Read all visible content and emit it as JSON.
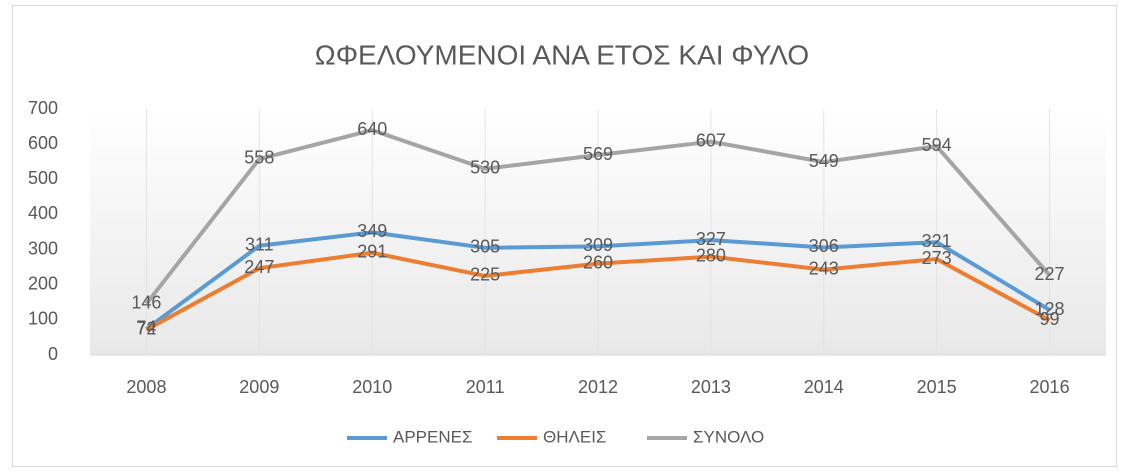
{
  "chart_data": {
    "type": "line",
    "title": "ΩΦΕΛΟΥΜΕΝΟΙ ΑΝΑ ΕΤΟΣ ΚΑΙ ΦΥΛΟ",
    "categories": [
      "2008",
      "2009",
      "2010",
      "2011",
      "2012",
      "2013",
      "2014",
      "2015",
      "2016"
    ],
    "series": [
      {
        "name": "ΑΡΡΕΝΕΣ",
        "color": "#5b9bd5",
        "values": [
          74,
          311,
          349,
          305,
          309,
          327,
          306,
          321,
          128
        ]
      },
      {
        "name": "ΘΗΛΕΙΣ",
        "color": "#ed7d31",
        "values": [
          72,
          247,
          291,
          225,
          260,
          280,
          243,
          273,
          99
        ]
      },
      {
        "name": "ΣΥΝΟΛΟ",
        "color": "#a5a5a5",
        "values": [
          146,
          558,
          640,
          530,
          569,
          607,
          549,
          594,
          227
        ]
      }
    ],
    "ylim": [
      0,
      700
    ],
    "yticks": [
      0,
      100,
      200,
      300,
      400,
      500,
      600,
      700
    ],
    "grid": false,
    "xgrid": true,
    "legend": "bottom",
    "data_labels": true
  }
}
